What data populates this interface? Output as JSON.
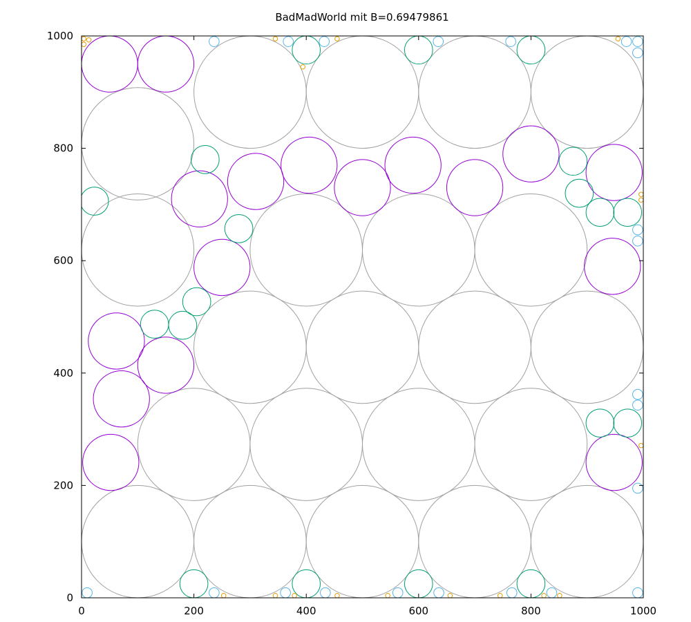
{
  "chart_data": {
    "type": "scatter",
    "title": "BadMadWorld mit B=0.69479861",
    "xlabel": "",
    "ylabel": "",
    "xlim": [
      0,
      1000
    ],
    "ylim": [
      0,
      1000
    ],
    "x_ticks": [
      0,
      200,
      400,
      600,
      800,
      1000
    ],
    "y_ticks": [
      0,
      200,
      400,
      600,
      800,
      1000
    ],
    "grid": false,
    "colors": {
      "gray": "#a0a0a0",
      "purple": "#9400d3",
      "green": "#009e73",
      "cyan": "#56b4e9",
      "orange": "#e69f00"
    },
    "series": [
      {
        "color": "gray",
        "circles": [
          [
            100,
            100,
            100
          ],
          [
            300,
            100,
            100
          ],
          [
            500,
            100,
            100
          ],
          [
            700,
            100,
            100
          ],
          [
            900,
            100,
            100
          ],
          [
            200,
            273,
            100
          ],
          [
            400,
            273,
            100
          ],
          [
            600,
            273,
            100
          ],
          [
            800,
            273,
            100
          ],
          [
            300,
            446,
            100
          ],
          [
            500,
            446,
            100
          ],
          [
            700,
            446,
            100
          ],
          [
            900,
            446,
            100
          ],
          [
            100,
            619,
            100
          ],
          [
            400,
            619,
            100
          ],
          [
            600,
            619,
            100
          ],
          [
            800,
            619,
            100
          ],
          [
            100,
            808,
            100
          ],
          [
            300,
            900,
            100
          ],
          [
            500,
            900,
            100
          ],
          [
            700,
            900,
            100
          ],
          [
            900,
            900,
            100
          ]
        ]
      },
      {
        "color": "purple",
        "circles": [
          [
            50,
            950,
            50
          ],
          [
            150,
            950,
            50
          ],
          [
            210,
            710,
            50
          ],
          [
            310,
            741,
            50
          ],
          [
            405,
            770,
            50
          ],
          [
            500,
            730,
            50
          ],
          [
            590,
            770,
            50
          ],
          [
            700,
            730,
            50
          ],
          [
            800,
            790,
            50
          ],
          [
            948,
            757,
            50
          ],
          [
            250,
            588,
            50
          ],
          [
            945,
            590,
            50
          ],
          [
            62,
            457,
            50
          ],
          [
            150,
            414,
            50
          ],
          [
            71,
            354,
            50
          ],
          [
            52,
            241,
            50
          ],
          [
            948,
            241,
            50
          ]
        ]
      },
      {
        "color": "green",
        "circles": [
          [
            400,
            975,
            25
          ],
          [
            600,
            975,
            25
          ],
          [
            800,
            975,
            25
          ],
          [
            220,
            780,
            25
          ],
          [
            875,
            777,
            25
          ],
          [
            886,
            720,
            25
          ],
          [
            923,
            686,
            25
          ],
          [
            972,
            686,
            25
          ],
          [
            23,
            706,
            25
          ],
          [
            280,
            657,
            25
          ],
          [
            205,
            527,
            25
          ],
          [
            130,
            487,
            25
          ],
          [
            180,
            485,
            25
          ],
          [
            923,
            311,
            25
          ],
          [
            972,
            311,
            25
          ],
          [
            200,
            25,
            25
          ],
          [
            400,
            25,
            25
          ],
          [
            600,
            25,
            25
          ],
          [
            800,
            25,
            25
          ]
        ]
      },
      {
        "color": "cyan",
        "circles": [
          [
            236,
            990,
            9
          ],
          [
            368,
            990,
            9
          ],
          [
            432,
            990,
            9
          ],
          [
            635,
            990,
            9
          ],
          [
            764,
            990,
            9
          ],
          [
            970,
            990,
            9
          ],
          [
            990,
            990,
            9
          ],
          [
            990,
            970,
            9
          ],
          [
            990,
            655,
            9
          ],
          [
            990,
            635,
            9
          ],
          [
            990,
            362,
            9
          ],
          [
            990,
            343,
            9
          ],
          [
            990,
            195,
            9
          ],
          [
            10,
            9,
            9
          ],
          [
            236,
            9,
            9
          ],
          [
            363,
            9,
            9
          ],
          [
            434,
            9,
            9
          ],
          [
            563,
            9,
            9
          ],
          [
            636,
            9,
            9
          ],
          [
            766,
            9,
            9
          ],
          [
            837,
            9,
            9
          ],
          [
            990,
            9,
            9
          ]
        ]
      },
      {
        "color": "orange",
        "circles": [
          [
            4,
            985,
            4
          ],
          [
            13,
            993,
            4
          ],
          [
            4,
            995,
            4
          ],
          [
            345,
            995,
            4
          ],
          [
            394,
            945,
            4
          ],
          [
            455,
            995,
            4
          ],
          [
            955,
            995,
            4
          ],
          [
            996,
            718,
            4
          ],
          [
            996,
            708,
            4
          ],
          [
            996,
            271,
            4
          ],
          [
            253,
            4,
            4
          ],
          [
            345,
            4,
            4
          ],
          [
            379,
            4,
            4
          ],
          [
            455,
            4,
            4
          ],
          [
            545,
            4,
            4
          ],
          [
            656,
            4,
            4
          ],
          [
            745,
            4,
            4
          ],
          [
            823,
            4,
            4
          ],
          [
            851,
            4,
            4
          ]
        ]
      }
    ]
  }
}
